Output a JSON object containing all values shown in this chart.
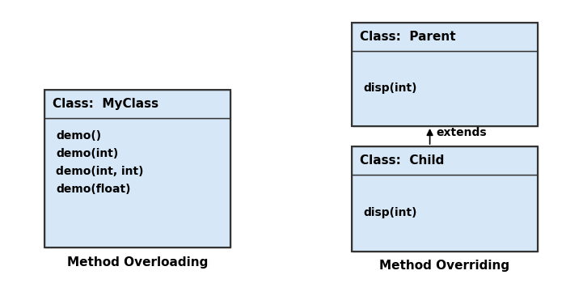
{
  "bg_color": "#ffffff",
  "box_fill": "#d6e8f7",
  "box_edge": "#333333",
  "text_color": "#000000",
  "left_class_name": "Class:  MyClass",
  "left_methods": [
    "demo()",
    "demo(int)",
    "demo(int, int)",
    "demo(float)"
  ],
  "left_label": "Method Overloading",
  "right_parent_name": "Class:  Parent",
  "right_parent_method": "disp(int)",
  "right_child_name": "Class:  Child",
  "right_child_method": "disp(int)",
  "right_label": "Method Overriding",
  "arrow_label": "extends",
  "header_fontsize": 11,
  "method_fontsize": 10,
  "label_fontsize": 11
}
